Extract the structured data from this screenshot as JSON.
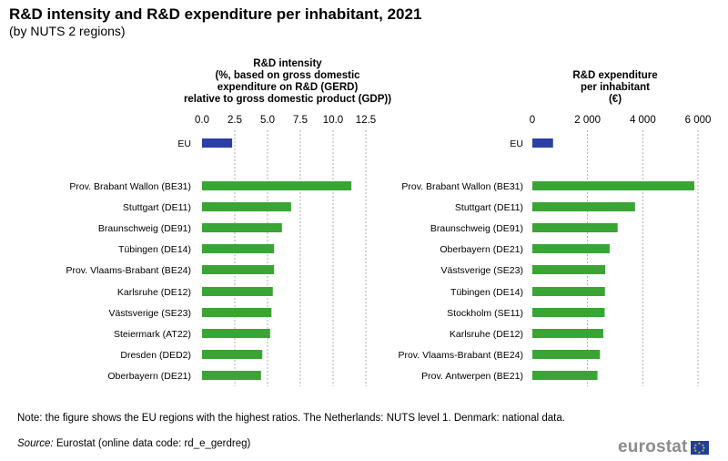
{
  "header": {
    "title": "R&D intensity and R&D expenditure per inhabitant, 2021",
    "subtitle": "(by NUTS  2 regions)"
  },
  "colors": {
    "eu_bar": "#2b3fa5",
    "region_bar": "#3aa535",
    "grid": "#999999"
  },
  "chart_data": [
    {
      "type": "bar",
      "orientation": "horizontal",
      "title": [
        "R&D intensity",
        "(%, based on gross domestic",
        "expenditure on R&D (GERD)",
        "relative to gross domestic product (GDP))"
      ],
      "xlim": [
        0,
        12.5
      ],
      "ticks": [
        "0.0",
        "2.5",
        "5.0",
        "7.5",
        "10.0",
        "12.5"
      ],
      "tick_values": [
        0,
        2.5,
        5,
        7.5,
        10,
        12.5
      ],
      "categories": [
        "EU",
        "Prov. Brabant Wallon (BE31)",
        "Stuttgart (DE11)",
        "Braunschweig (DE91)",
        "Tübingen (DE14)",
        "Prov. Vlaams-Brabant (BE24)",
        "Karlsruhe (DE12)",
        "Västsverige (SE23)",
        "Steiermark (AT22)",
        "Dresden (DED2)",
        "Oberbayern (DE21)"
      ],
      "values": [
        2.3,
        11.4,
        6.8,
        6.1,
        5.5,
        5.5,
        5.4,
        5.3,
        5.2,
        4.6,
        4.5
      ],
      "grid": true
    },
    {
      "type": "bar",
      "orientation": "horizontal",
      "title": [
        "R&D expenditure",
        "per inhabitant",
        "(€)"
      ],
      "xlim": [
        0,
        6000
      ],
      "ticks": [
        "0",
        "2 000",
        "4 000",
        "6 000"
      ],
      "tick_values": [
        0,
        2000,
        4000,
        6000
      ],
      "categories": [
        "EU",
        "Prov. Brabant Wallon (BE31)",
        "Stuttgart (DE11)",
        "Braunschweig (DE91)",
        "Oberbayern (DE21)",
        "Västsverige (SE23)",
        "Tübingen (DE14)",
        "Stockholm (SE11)",
        "Karlsruhe (DE12)",
        "Prov. Vlaams-Brabant (BE24)",
        "Prov. Antwerpen (BE21)"
      ],
      "values": [
        750,
        5870,
        3720,
        3090,
        2800,
        2640,
        2630,
        2620,
        2570,
        2450,
        2360
      ],
      "grid": true
    }
  ],
  "footer": {
    "note": "Note: the figure shows the EU regions with the highest ratios. The Netherlands:  NUTS level 1. Denmark: national data.",
    "source_label": "Source:",
    "source_text": " Eurostat (online data code: rd_e_gerdreg)",
    "logo_text": "eurostat",
    "flag_icon": "eu-flag-icon"
  }
}
